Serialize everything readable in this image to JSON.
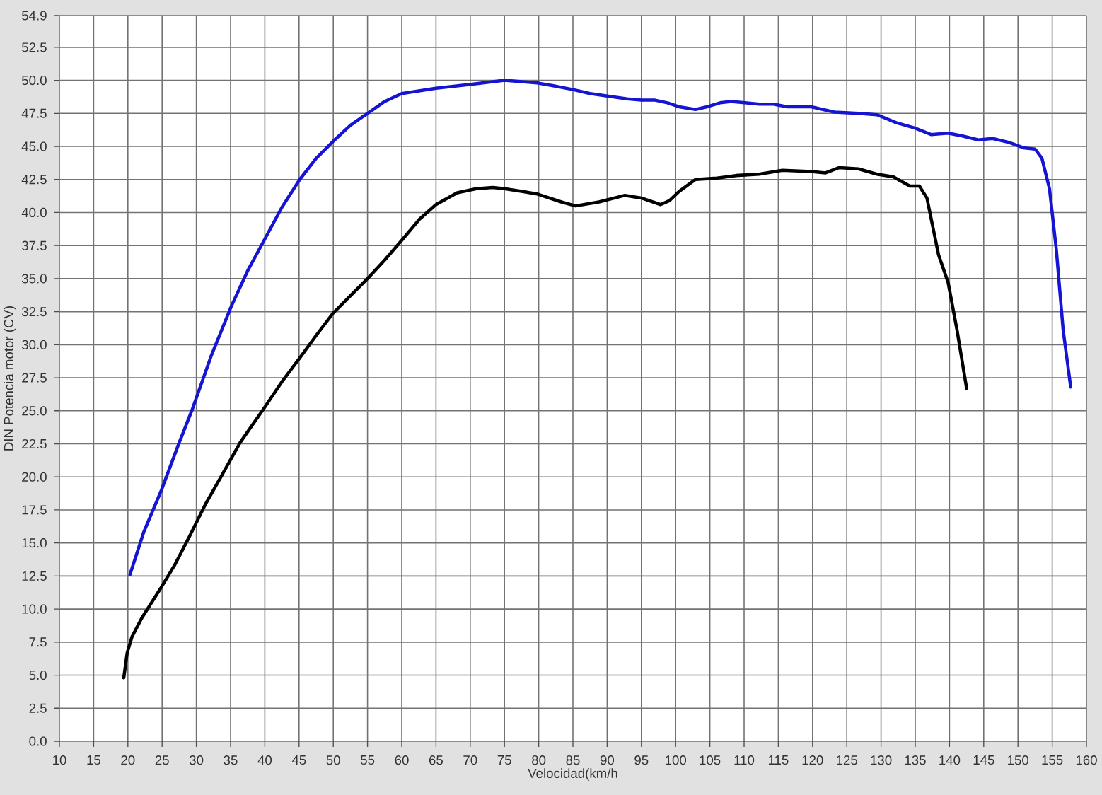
{
  "chart_data": {
    "type": "line",
    "xlabel": "Velocidad(km/h",
    "ylabel": "DIN Potencia motor (CV)",
    "xlim": [
      10,
      160
    ],
    "xticks": [
      10,
      15,
      20,
      25,
      30,
      35,
      40,
      45,
      50,
      55,
      60,
      65,
      70,
      75,
      80,
      85,
      90,
      95,
      100,
      105,
      110,
      115,
      120,
      125,
      130,
      135,
      140,
      145,
      150,
      155,
      160
    ],
    "ylim": [
      0,
      54.9
    ],
    "yticks": [
      {
        "value": 0,
        "label": "0.0"
      },
      2.5,
      {
        "value": 5,
        "label": "5.0"
      },
      7.5,
      {
        "value": 10,
        "label": "10.0"
      },
      12.5,
      {
        "value": 15,
        "label": "15.0"
      },
      17.5,
      {
        "value": 20,
        "label": "20.0"
      },
      22.5,
      {
        "value": 25,
        "label": "25.0"
      },
      27.5,
      {
        "value": 30,
        "label": "30.0"
      },
      32.5,
      {
        "value": 35,
        "label": "35.0"
      },
      37.5,
      {
        "value": 40,
        "label": "40.0"
      },
      42.5,
      {
        "value": 45,
        "label": "45.0"
      },
      47.5,
      {
        "value": 50,
        "label": "50.0"
      },
      52.5,
      54.9
    ],
    "grid": true,
    "line_style": "solid",
    "series": [
      {
        "color": "#1414d2",
        "x": [
          20.3,
          22.3,
          24.9,
          27.5,
          29.4,
          32.2,
          35.1,
          37.5,
          39.9,
          42.5,
          45.1,
          47.5,
          50.0,
          52.5,
          55.0,
          57.5,
          60.0,
          62.5,
          65.0,
          70.1,
          75.0,
          77.4,
          79.8,
          82.0,
          85.0,
          87.5,
          90.2,
          92.9,
          95.0,
          97.0,
          98.8,
          100.5,
          102.9,
          104.6,
          106.5,
          108.1,
          110.1,
          112.2,
          114.3,
          116.3,
          118.0,
          119.8,
          121.5,
          123.2,
          126.7,
          129.4,
          130.8,
          132.2,
          134.9,
          137.3,
          139.8,
          141.8,
          144.2,
          146.3,
          148.7,
          150.8,
          152.5,
          153.5,
          154.6,
          155.6,
          156.6,
          157.7
        ],
        "values": [
          12.6,
          15.8,
          19.0,
          22.6,
          25.1,
          29.2,
          32.9,
          35.6,
          37.9,
          40.4,
          42.5,
          44.1,
          45.4,
          46.6,
          47.5,
          48.4,
          49.0,
          49.2,
          49.4,
          49.7,
          50.0,
          49.9,
          49.8,
          49.6,
          49.3,
          49.0,
          48.8,
          48.6,
          48.5,
          48.5,
          48.3,
          48.0,
          47.8,
          48.0,
          48.3,
          48.4,
          48.3,
          48.2,
          48.2,
          48.0,
          48.0,
          48.0,
          47.8,
          47.6,
          47.5,
          47.4,
          47.1,
          46.8,
          46.4,
          45.9,
          46.0,
          45.8,
          45.5,
          45.6,
          45.3,
          44.9,
          44.8,
          44.1,
          41.8,
          37.2,
          31.1,
          26.8
        ]
      },
      {
        "color": "#000000",
        "x": [
          19.4,
          19.9,
          20.6,
          22.0,
          24.7,
          26.8,
          28.9,
          31.3,
          33.7,
          36.4,
          39.9,
          42.5,
          45.1,
          47.5,
          50.0,
          52.5,
          55.0,
          57.5,
          60.0,
          62.6,
          65.0,
          68.1,
          70.9,
          73.3,
          75.0,
          77.5,
          79.8,
          83.3,
          85.4,
          88.8,
          92.6,
          95.0,
          97.8,
          99.1,
          100.5,
          102.9,
          106.0,
          108.8,
          112.2,
          115.6,
          119.8,
          121.9,
          123.9,
          126.7,
          129.4,
          131.8,
          134.2,
          135.6,
          136.7,
          138.4,
          139.8,
          141.1,
          142.5
        ],
        "values": [
          4.8,
          6.7,
          7.9,
          9.3,
          11.5,
          13.3,
          15.4,
          17.9,
          20.1,
          22.6,
          25.2,
          27.2,
          29.0,
          30.7,
          32.4,
          33.7,
          35.0,
          36.4,
          37.9,
          39.5,
          40.6,
          41.5,
          41.8,
          41.9,
          41.8,
          41.6,
          41.4,
          40.8,
          40.5,
          40.8,
          41.3,
          41.1,
          40.6,
          40.9,
          41.6,
          42.5,
          42.6,
          42.8,
          42.9,
          43.2,
          43.1,
          43.0,
          43.4,
          43.3,
          42.9,
          42.7,
          42.0,
          42.0,
          41.1,
          36.8,
          34.7,
          31.1,
          26.7
        ]
      }
    ]
  }
}
